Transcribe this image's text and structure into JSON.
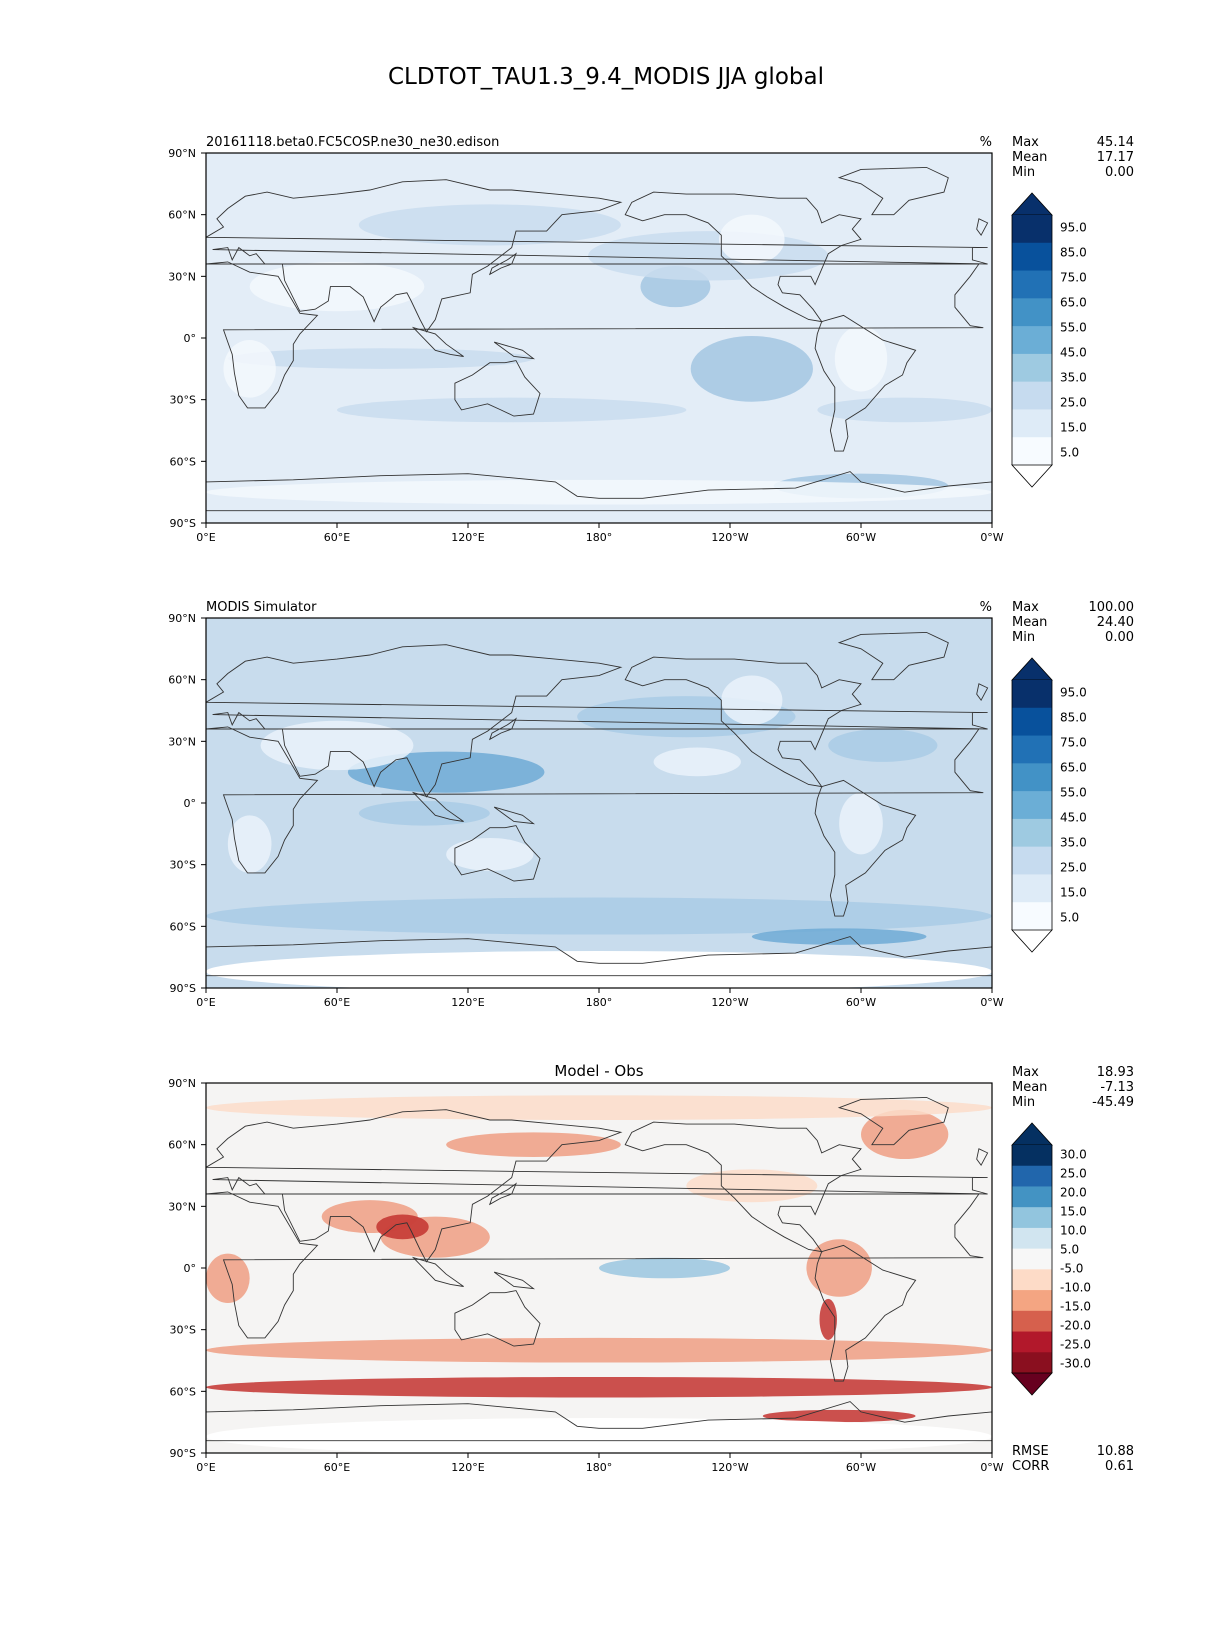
{
  "title": "CLDTOT_TAU1.3_9.4_MODIS JJA global",
  "x_ticks": [
    "0°E",
    "60°E",
    "120°E",
    "180°",
    "120°W",
    "60°W",
    "0°W"
  ],
  "y_ticks": [
    "90°N",
    "60°N",
    "30°N",
    "0°",
    "30°S",
    "60°S",
    "90°S"
  ],
  "chart_data": [
    {
      "type": "heatmap",
      "panel_label": "20161118.beta0.FC5COSP.ne30_ne30.edison",
      "units": "%",
      "stats": [
        {
          "label": "Max",
          "value": "45.14"
        },
        {
          "label": "Mean",
          "value": "17.17"
        },
        {
          "label": "Min",
          "value": "0.00"
        }
      ],
      "colorbar": {
        "ticks": [
          "95.0",
          "85.0",
          "75.0",
          "65.0",
          "55.0",
          "45.0",
          "35.0",
          "25.0",
          "15.0",
          "5.0"
        ],
        "colors": [
          "#08306b",
          "#08519c",
          "#2171b5",
          "#4292c6",
          "#6baed6",
          "#9ecae1",
          "#c6dbef",
          "#deebf7",
          "#f7fbff"
        ],
        "extend_top": "#08306b",
        "extend_bottom": "#ffffff"
      },
      "field_colors": {
        "base": "#e3edf7",
        "light": "#f3f8fd",
        "mid": "#c9dcee",
        "dark": "#a3c6e2"
      },
      "xlim": [
        0,
        360
      ],
      "ylim": [
        -90,
        90
      ]
    },
    {
      "type": "heatmap",
      "panel_label": "MODIS Simulator",
      "units": "%",
      "stats": [
        {
          "label": "Max",
          "value": "100.00"
        },
        {
          "label": "Mean",
          "value": "24.40"
        },
        {
          "label": "Min",
          "value": "0.00"
        }
      ],
      "colorbar": {
        "ticks": [
          "95.0",
          "85.0",
          "75.0",
          "65.0",
          "55.0",
          "45.0",
          "35.0",
          "25.0",
          "15.0",
          "5.0"
        ],
        "colors": [
          "#08306b",
          "#08519c",
          "#2171b5",
          "#4292c6",
          "#6baed6",
          "#9ecae1",
          "#c6dbef",
          "#deebf7",
          "#f7fbff"
        ],
        "extend_top": "#08306b",
        "extend_bottom": "#ffffff"
      },
      "field_colors": {
        "base": "#c8dced",
        "light": "#eaf2fa",
        "mid": "#a9cbe5",
        "dark": "#6faad5"
      },
      "xlim": [
        0,
        360
      ],
      "ylim": [
        -90,
        90
      ]
    },
    {
      "type": "heatmap",
      "panel_title": "Model - Obs",
      "stats": [
        {
          "label": "Max",
          "value": "18.93"
        },
        {
          "label": "Mean",
          "value": "-7.13"
        },
        {
          "label": "Min",
          "value": "-45.49"
        }
      ],
      "colorbar": {
        "ticks": [
          "30.0",
          "25.0",
          "20.0",
          "15.0",
          "10.0",
          "5.0",
          "-5.0",
          "-10.0",
          "-15.0",
          "-20.0",
          "-25.0",
          "-30.0"
        ],
        "colors": [
          "#053061",
          "#2166ac",
          "#4393c3",
          "#92c5de",
          "#d1e5f0",
          "#f7f7f7",
          "#fddbc7",
          "#f4a582",
          "#d6604d",
          "#b2182b",
          "#8a0f1f"
        ],
        "extend_top": "#053061",
        "extend_bottom": "#67001f"
      },
      "field_colors": {
        "base": "#f5f4f3",
        "light": "#fbdcc9",
        "mid": "#ef9e82",
        "dark": "#c3332f",
        "blue": "#9ac6df"
      },
      "bottom_stats": [
        {
          "label": "RMSE",
          "value": "10.88"
        },
        {
          "label": "CORR",
          "value": "0.61"
        }
      ],
      "xlim": [
        0,
        360
      ],
      "ylim": [
        -90,
        90
      ]
    }
  ]
}
